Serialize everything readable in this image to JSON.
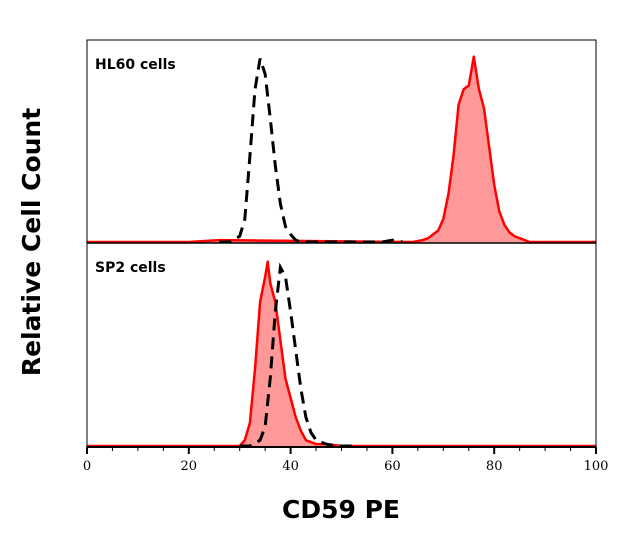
{
  "chart_data": {
    "type": "area",
    "xlabel": "CD59 PE",
    "ylabel": "Relative Cell Count",
    "xlim": [
      0,
      100
    ],
    "x_ticks": [
      "0",
      "20",
      "40",
      "60",
      "80",
      "100"
    ],
    "x_minor_tick_step": 5,
    "grid": false,
    "colors": {
      "stained_fill": "#ff9999",
      "stained_line": "#ff0000",
      "control_line": "#000000"
    },
    "panels": [
      {
        "label": "HL60 cells",
        "series": [
          {
            "style": "dashed-black",
            "x": [
              26,
              28,
              30,
              31,
              32,
              33,
              34,
              35,
              36,
              37,
              38,
              39,
              40,
              41,
              42,
              44,
              50,
              58,
              60,
              62
            ],
            "y": [
              0,
              0,
              3,
              12,
              45,
              80,
              96,
              88,
              65,
              40,
              20,
              8,
              4,
              1,
              0,
              0,
              0,
              0,
              1,
              0
            ]
          },
          {
            "style": "filled-red",
            "x": [
              0,
              20,
              26,
              64,
              66,
              67,
              68,
              69,
              70,
              71,
              72,
              73,
              74,
              75,
              76,
              77,
              78,
              79,
              80,
              81,
              82,
              83,
              84,
              85,
              86,
              87,
              100
            ],
            "y": [
              0,
              0,
              1,
              0,
              1,
              2,
              4,
              6,
              12,
              25,
              45,
              72,
              80,
              82,
              97,
              80,
              70,
              50,
              30,
              16,
              9,
              5,
              3,
              2,
              1,
              0,
              0
            ]
          }
        ]
      },
      {
        "label": "SP2 cells",
        "series": [
          {
            "style": "filled-red",
            "x": [
              0,
              28,
              30,
              31,
              32,
              33,
              34,
              35,
              35.5,
              36,
              37,
              38,
              39,
              40,
              41,
              42,
              43,
              45,
              47,
              50,
              100
            ],
            "y": [
              0,
              0,
              0,
              3,
              12,
              40,
              75,
              88,
              96,
              85,
              75,
              55,
              35,
              25,
              15,
              8,
              3,
              1,
              1,
              0,
              0
            ]
          },
          {
            "style": "dashed-black",
            "x": [
              30,
              32,
              34,
              35,
              36,
              37,
              38,
              39,
              40,
              41,
              42,
              43,
              44,
              45,
              47,
              49,
              52
            ],
            "y": [
              0,
              0,
              3,
              10,
              35,
              70,
              93,
              88,
              70,
              50,
              30,
              15,
              7,
              3,
              1,
              0,
              0
            ]
          }
        ]
      }
    ]
  }
}
